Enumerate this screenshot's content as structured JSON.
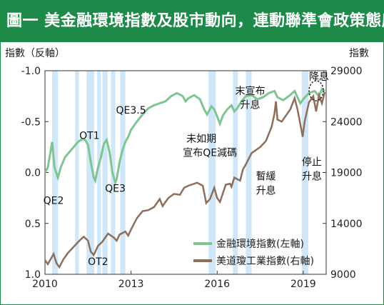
{
  "header": {
    "title": "圖一 美金融環境指數及股市動向，連動聯準會政策態度"
  },
  "axis": {
    "left_label": "指數（反軸）",
    "right_label": "指數",
    "left_ticks": [
      "-1.0",
      "-0.5",
      "0.0",
      "0.5",
      "1.0"
    ],
    "right_ticks": [
      "29000",
      "24000",
      "19000",
      "14000",
      "9000"
    ],
    "x_ticks": [
      "2010",
      "2013",
      "2016",
      "2019"
    ]
  },
  "legend": {
    "fci": "金融環境指數(左軸)",
    "dow": "美道瓊工業指數(右軸)"
  },
  "colors": {
    "header_bg": "#1e8a4a",
    "fci_line": "#7fc493",
    "dow_line": "#8c6f5c",
    "shade": "#a8d4f2",
    "axis": "#333333"
  },
  "annotations": {
    "qe2": "QE2",
    "ot1": "OT1",
    "ot2": "OT2",
    "qe3": "QE3",
    "qe35": "QE3.5",
    "no_announce_1": "未如期",
    "no_announce_2": "宣布QE減碼",
    "announce_hike_1": "末宣布",
    "announce_hike_2": "升息",
    "slow_hike_1": "暫緩",
    "slow_hike_2": "升息",
    "stop_hike_1": "停止",
    "stop_hike_2": "升息",
    "cut": "降息"
  },
  "chart_data": {
    "type": "line",
    "x_range": [
      2010.0,
      2019.8
    ],
    "left_axis": {
      "label": "指數（反軸）",
      "inverted": true,
      "range": [
        -1.0,
        1.0
      ]
    },
    "right_axis": {
      "label": "指數",
      "range": [
        9000,
        29000
      ]
    },
    "series": [
      {
        "name": "金融環境指數(左軸)",
        "axis": "left",
        "points": [
          [
            2010.0,
            0.0
          ],
          [
            2010.1,
            -0.05
          ],
          [
            2010.25,
            -0.3
          ],
          [
            2010.33,
            -0.05
          ],
          [
            2010.45,
            0.05
          ],
          [
            2010.55,
            -0.05
          ],
          [
            2010.7,
            -0.15
          ],
          [
            2010.85,
            -0.2
          ],
          [
            2011.0,
            -0.25
          ],
          [
            2011.15,
            -0.3
          ],
          [
            2011.3,
            -0.33
          ],
          [
            2011.4,
            -0.32
          ],
          [
            2011.5,
            -0.27
          ],
          [
            2011.6,
            -0.1
          ],
          [
            2011.7,
            0.05
          ],
          [
            2011.75,
            0.08
          ],
          [
            2011.85,
            -0.05
          ],
          [
            2011.95,
            -0.15
          ],
          [
            2012.05,
            -0.28
          ],
          [
            2012.15,
            -0.32
          ],
          [
            2012.25,
            -0.2
          ],
          [
            2012.35,
            0.0
          ],
          [
            2012.45,
            0.1
          ],
          [
            2012.5,
            0.06
          ],
          [
            2012.6,
            -0.1
          ],
          [
            2012.7,
            -0.22
          ],
          [
            2012.8,
            -0.3
          ],
          [
            2012.9,
            -0.35
          ],
          [
            2013.0,
            -0.42
          ],
          [
            2013.2,
            -0.5
          ],
          [
            2013.4,
            -0.57
          ],
          [
            2013.6,
            -0.63
          ],
          [
            2013.8,
            -0.66
          ],
          [
            2014.0,
            -0.68
          ],
          [
            2014.2,
            -0.7
          ],
          [
            2014.4,
            -0.75
          ],
          [
            2014.6,
            -0.78
          ],
          [
            2014.8,
            -0.75
          ],
          [
            2014.9,
            -0.7
          ],
          [
            2015.0,
            -0.73
          ],
          [
            2015.2,
            -0.76
          ],
          [
            2015.4,
            -0.72
          ],
          [
            2015.55,
            -0.62
          ],
          [
            2015.65,
            -0.57
          ],
          [
            2015.8,
            -0.65
          ],
          [
            2015.9,
            -0.62
          ],
          [
            2016.0,
            -0.55
          ],
          [
            2016.1,
            -0.48
          ],
          [
            2016.2,
            -0.56
          ],
          [
            2016.35,
            -0.62
          ],
          [
            2016.5,
            -0.66
          ],
          [
            2016.6,
            -0.6
          ],
          [
            2016.7,
            -0.63
          ],
          [
            2016.85,
            -0.7
          ],
          [
            2017.0,
            -0.75
          ],
          [
            2017.2,
            -0.76
          ],
          [
            2017.4,
            -0.72
          ],
          [
            2017.6,
            -0.74
          ],
          [
            2017.8,
            -0.78
          ],
          [
            2018.0,
            -0.8
          ],
          [
            2018.1,
            -0.74
          ],
          [
            2018.3,
            -0.71
          ],
          [
            2018.5,
            -0.75
          ],
          [
            2018.7,
            -0.8
          ],
          [
            2018.8,
            -0.74
          ],
          [
            2018.9,
            -0.68
          ],
          [
            2019.0,
            -0.72
          ],
          [
            2019.2,
            -0.78
          ],
          [
            2019.4,
            -0.8
          ],
          [
            2019.55,
            -0.75
          ],
          [
            2019.65,
            -0.82
          ],
          [
            2019.75,
            -0.8
          ]
        ]
      },
      {
        "name": "美道瓊工業指數(右軸)",
        "axis": "right",
        "points": [
          [
            2010.0,
            10400
          ],
          [
            2010.1,
            10000
          ],
          [
            2010.3,
            11000
          ],
          [
            2010.4,
            10100
          ],
          [
            2010.5,
            9700
          ],
          [
            2010.65,
            10500
          ],
          [
            2010.8,
            11100
          ],
          [
            2011.0,
            11700
          ],
          [
            2011.2,
            12300
          ],
          [
            2011.35,
            12700
          ],
          [
            2011.5,
            12300
          ],
          [
            2011.6,
            11200
          ],
          [
            2011.7,
            10900
          ],
          [
            2011.85,
            11800
          ],
          [
            2012.0,
            12200
          ],
          [
            2012.2,
            13000
          ],
          [
            2012.4,
            12600
          ],
          [
            2012.5,
            12300
          ],
          [
            2012.6,
            12900
          ],
          [
            2012.8,
            13200
          ],
          [
            2012.9,
            12800
          ],
          [
            2013.0,
            13400
          ],
          [
            2013.2,
            14500
          ],
          [
            2013.4,
            15200
          ],
          [
            2013.6,
            15300
          ],
          [
            2013.8,
            15600
          ],
          [
            2014.0,
            16400
          ],
          [
            2014.1,
            15700
          ],
          [
            2014.3,
            16500
          ],
          [
            2014.5,
            16900
          ],
          [
            2014.7,
            16800
          ],
          [
            2014.85,
            17500
          ],
          [
            2015.0,
            17700
          ],
          [
            2015.3,
            18000
          ],
          [
            2015.5,
            17700
          ],
          [
            2015.62,
            16000
          ],
          [
            2015.75,
            16400
          ],
          [
            2015.9,
            17500
          ],
          [
            2016.0,
            16500
          ],
          [
            2016.1,
            16100
          ],
          [
            2016.3,
            17800
          ],
          [
            2016.45,
            17900
          ],
          [
            2016.5,
            17600
          ],
          [
            2016.6,
            18500
          ],
          [
            2016.8,
            18200
          ],
          [
            2016.9,
            19300
          ],
          [
            2017.0,
            19800
          ],
          [
            2017.2,
            20900
          ],
          [
            2017.5,
            21500
          ],
          [
            2017.7,
            22100
          ],
          [
            2017.9,
            23500
          ],
          [
            2018.0,
            24800
          ],
          [
            2018.05,
            26000
          ],
          [
            2018.1,
            24200
          ],
          [
            2018.25,
            24000
          ],
          [
            2018.4,
            24600
          ],
          [
            2018.55,
            25200
          ],
          [
            2018.7,
            26300
          ],
          [
            2018.8,
            25200
          ],
          [
            2018.95,
            23000
          ],
          [
            2018.98,
            22500
          ],
          [
            2019.05,
            24000
          ],
          [
            2019.2,
            25900
          ],
          [
            2019.35,
            26500
          ],
          [
            2019.45,
            25000
          ],
          [
            2019.55,
            26600
          ],
          [
            2019.65,
            25800
          ],
          [
            2019.75,
            26900
          ]
        ]
      }
    ],
    "shaded_regions": [
      [
        2010.25,
        2010.45
      ],
      [
        2011.05,
        2011.18
      ],
      [
        2011.45,
        2011.72
      ],
      [
        2011.82,
        2011.95
      ],
      [
        2012.0,
        2012.18
      ],
      [
        2012.3,
        2012.45
      ],
      [
        2012.62,
        2012.8
      ],
      [
        2015.7,
        2015.95
      ],
      [
        2016.55,
        2016.72
      ],
      [
        2017.0,
        2017.2
      ],
      [
        2018.95,
        2019.18
      ]
    ],
    "annotation_positions": [
      {
        "label": "QE2",
        "x": 2010.3,
        "y": 0.31
      },
      {
        "label": "OT1",
        "x": 2011.55,
        "y": -0.33
      },
      {
        "label": "OT2",
        "x": 2011.85,
        "y": 0.91
      },
      {
        "label": "QE3",
        "x": 2012.45,
        "y": 0.19
      },
      {
        "label": "QE3.5",
        "x": 2013.0,
        "y": -0.58
      },
      {
        "label": "未如期",
        "x": 2015.45,
        "y": -0.3
      },
      {
        "label": "宣布QE減碼",
        "x": 2015.75,
        "y": -0.16
      },
      {
        "label": "末宣布",
        "x": 2017.15,
        "y": -0.77
      },
      {
        "label": "升息",
        "x": 2017.15,
        "y": -0.63
      },
      {
        "label": "暫緩",
        "x": 2017.7,
        "y": 0.07
      },
      {
        "label": "升息",
        "x": 2017.7,
        "y": 0.21
      },
      {
        "label": "停止",
        "x": 2019.3,
        "y": -0.07
      },
      {
        "label": "升息",
        "x": 2019.3,
        "y": 0.07
      },
      {
        "label": "降息",
        "x": 2019.55,
        "y": -0.91
      }
    ]
  }
}
